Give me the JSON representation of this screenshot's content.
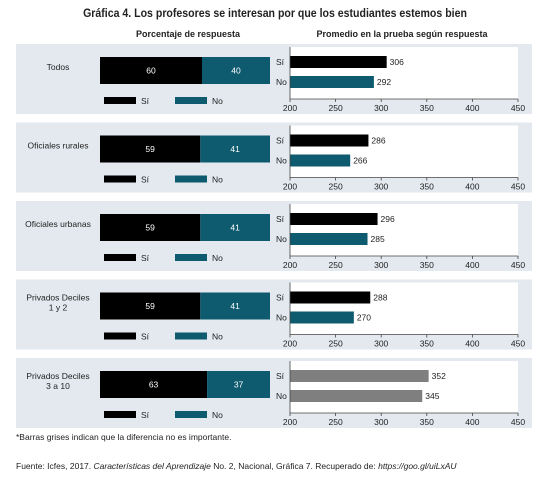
{
  "title": "Gráfica 4. Los profesores se interesan por que los estudiantes estemos bien",
  "left_header": "Porcentaje de respuesta",
  "right_header": "Promedio en la prueba según respuesta",
  "colors": {
    "si": "#000000",
    "no": "#0e5a6e",
    "grey": "#7f7f7f",
    "panel_bg": "#e3e9ef",
    "axis": "#444444"
  },
  "note": "*Barras grises indican que la diferencia no es importante.",
  "source": {
    "prefix": "Fuente: Icfes, 2017. ",
    "italic1": "Características del Aprendizaje",
    "middle": " No. 2, Nacional, Gráfica 7. Recuperado de: ",
    "italic2": "https://goo.gl/uiLxAU"
  },
  "chart_data": {
    "type": "bar",
    "groups": [
      "Todos",
      "Oficiales rurales",
      "Oficiales urbanas",
      "Privados Deciles\n1 y 2",
      "Privados Deciles\n3 a 10"
    ],
    "legend": [
      "Sí",
      "No"
    ],
    "percent": {
      "series": [
        {
          "name": "Sí",
          "values": [
            60,
            59,
            59,
            59,
            63
          ]
        },
        {
          "name": "No",
          "values": [
            40,
            41,
            41,
            41,
            37
          ]
        }
      ]
    },
    "scores": {
      "categories": [
        "Sí",
        "No"
      ],
      "series": [
        {
          "name": "Sí",
          "values": [
            306,
            286,
            296,
            288,
            352
          ]
        },
        {
          "name": "No",
          "values": [
            292,
            266,
            285,
            270,
            345
          ]
        }
      ],
      "grey_groups": [
        4
      ],
      "xlim": [
        200,
        450
      ],
      "ticks": [
        200,
        250,
        300,
        350,
        400,
        450
      ]
    }
  }
}
